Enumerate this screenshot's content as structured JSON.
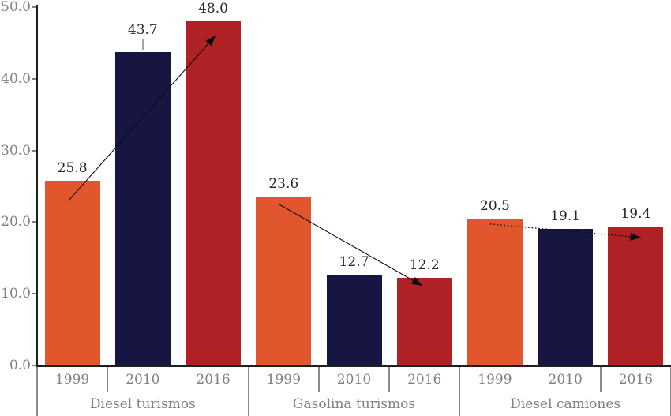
{
  "chart_data": {
    "type": "bar",
    "title": "",
    "xlabel": "",
    "ylabel": "",
    "ylim": [
      0,
      50
    ],
    "ytick_step": 10,
    "ytick_labels": [
      "0.0",
      "10.0",
      "20.0",
      "30.0",
      "40.0",
      "50.0"
    ],
    "grid": false,
    "legend": false,
    "categories_per_group": [
      "1999",
      "2010",
      "2016"
    ],
    "groups": [
      {
        "label": "Diesel turismos",
        "values": [
          25.8,
          43.7,
          48.0
        ]
      },
      {
        "label": "Gasolina turismos",
        "values": [
          23.6,
          12.7,
          12.2
        ]
      },
      {
        "label": "Diesel camiones",
        "values": [
          20.5,
          19.1,
          19.4
        ]
      }
    ],
    "value_labels": [
      [
        "25.8",
        "43.7",
        "48.0"
      ],
      [
        "23.6",
        "12.7",
        "12.2"
      ],
      [
        "20.5",
        "19.1",
        "19.4"
      ]
    ],
    "bar_colors_by_year": {
      "1999": "#E2562E",
      "2010": "#171642",
      "2016": "#B02126"
    },
    "annotations": [
      {
        "type": "trend-arrow",
        "group": 0,
        "style": "solid",
        "direction": "up"
      },
      {
        "type": "trend-arrow",
        "group": 1,
        "style": "solid",
        "direction": "down"
      },
      {
        "type": "trend-arrow",
        "group": 2,
        "style": "dotted",
        "direction": "flat"
      },
      {
        "type": "label-leader-line",
        "group": 0,
        "bar": 1
      }
    ],
    "style_colors": {
      "axis_line": "#1f1f1f",
      "tick_label": "#7f7f7f",
      "separator": "#8a8a8a",
      "value_label": "#262626",
      "arrow": "#0d0d0d",
      "leader_line": "#a6a6a6"
    }
  }
}
